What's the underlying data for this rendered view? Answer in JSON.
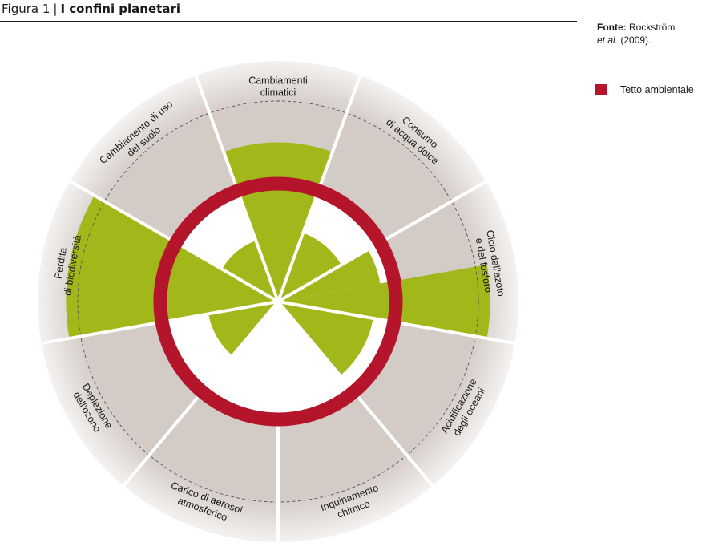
{
  "figure": {
    "number": "Figura 1",
    "separator": "|",
    "title": "I confini planetari"
  },
  "source": {
    "label": "Fonte:",
    "author": "Rockström",
    "etal": "et al.",
    "year": "(2009)."
  },
  "legend": {
    "label": "Tetto ambientale",
    "color": "#b5152b"
  },
  "colors": {
    "outer_disc": "#d3cbc6",
    "current_state": "#a2b81a",
    "boundary_ring": "#b5152b",
    "divider": "#ffffff",
    "dashed_circle": "#555555"
  },
  "chart_data": {
    "type": "radial",
    "title": "I confini planetari",
    "boundary_level": 1.0,
    "segments": [
      {
        "label_lines": [
          "Cambiamenti",
          "climatici"
        ],
        "level": 1.35
      },
      {
        "label_lines": [
          "Consumo",
          "di acqua dolce"
        ],
        "level": 0.62
      },
      {
        "label_lines": [
          "Ciclo dell'azoto",
          "e del fosforo"
        ],
        "level_inner": 0.88,
        "level_outer": 1.8
      },
      {
        "label_lines": [
          "Acidificazione",
          "degli oceani"
        ],
        "level": 0.82
      },
      {
        "label_lines": [
          "Inquinamento",
          "chimico"
        ],
        "level": null
      },
      {
        "label_lines": [
          "Carico di aerosol",
          "atmosferico"
        ],
        "level": null
      },
      {
        "label_lines": [
          "Deplezione",
          "dell'ozono"
        ],
        "level": 0.6
      },
      {
        "label_lines": [
          "Perdita",
          "di biodiversità"
        ],
        "level": 1.8
      },
      {
        "label_lines": [
          "Cambiamento di uso",
          "del suolo"
        ],
        "level": 0.55
      }
    ]
  }
}
